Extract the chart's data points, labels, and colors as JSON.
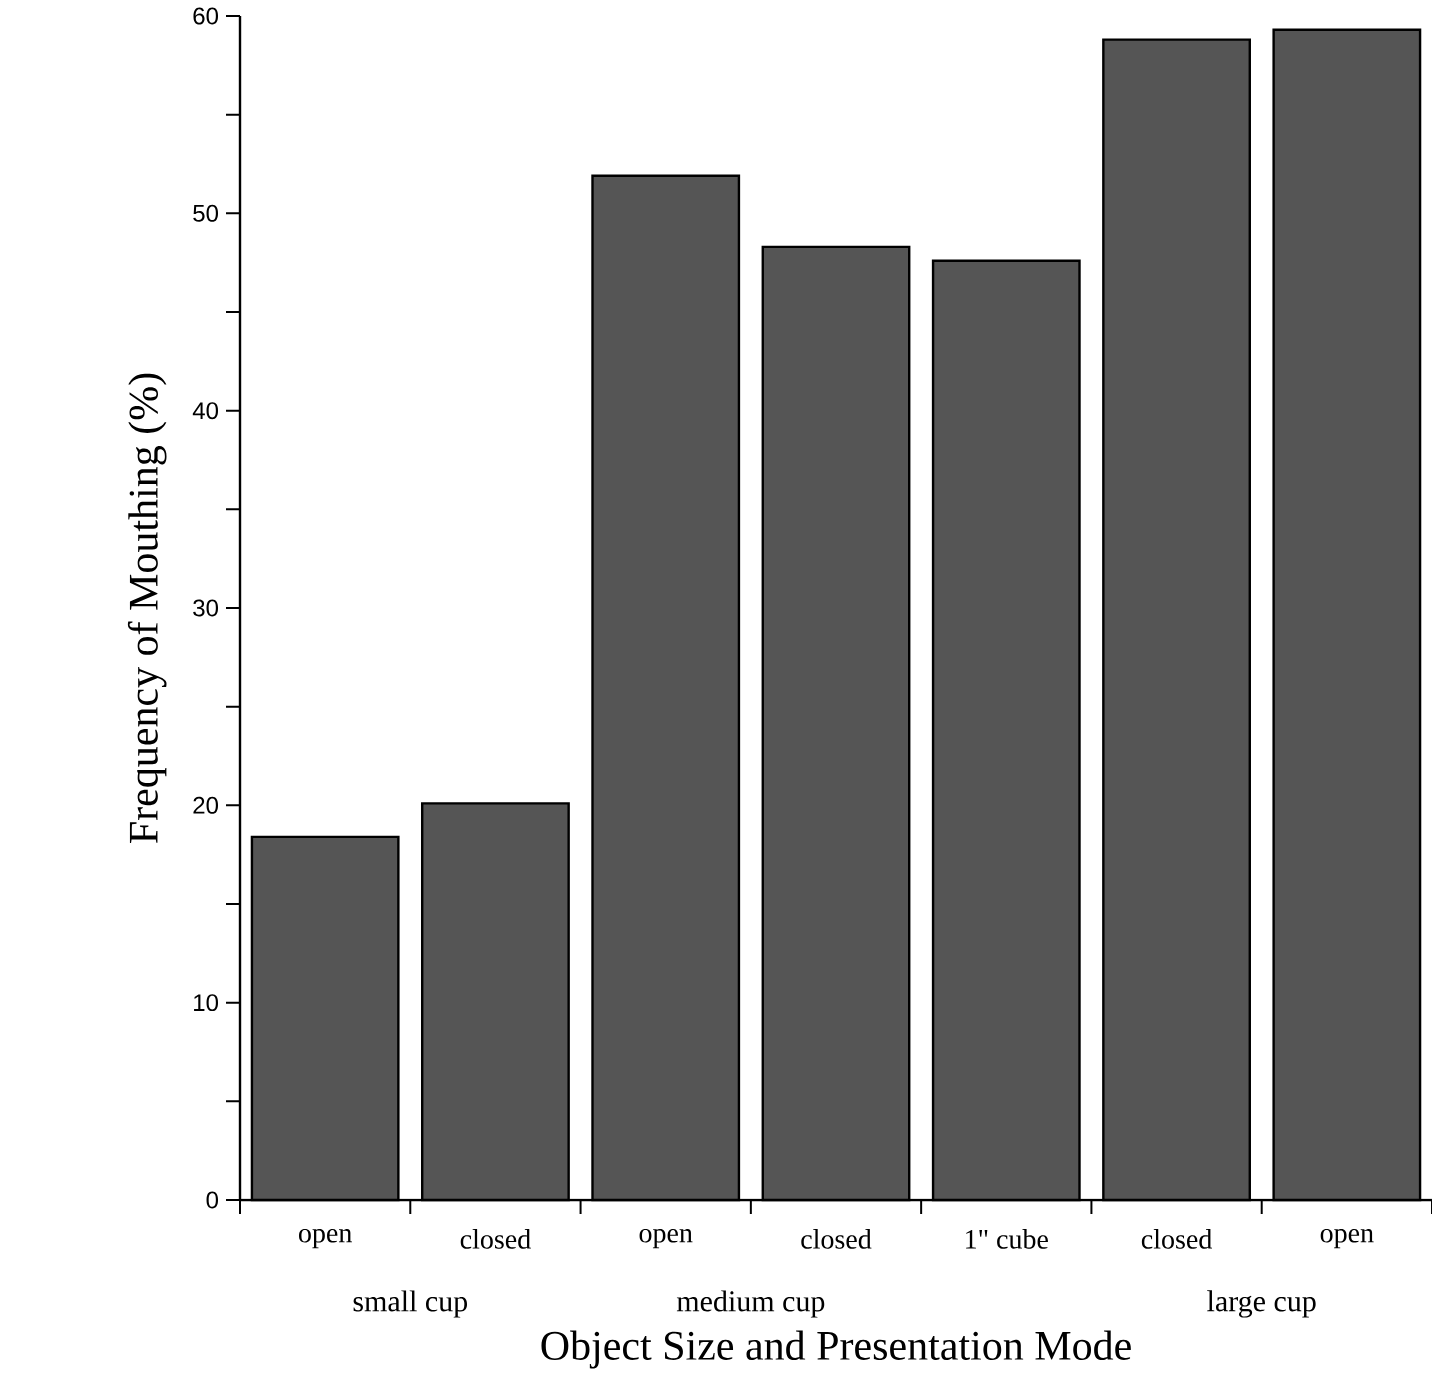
{
  "chart_data": {
    "type": "bar",
    "categories": [
      "open",
      "closed",
      "open",
      "closed",
      "1\" cube",
      "closed",
      "open"
    ],
    "values": [
      18.4,
      20.1,
      51.9,
      48.3,
      47.6,
      58.8,
      59.3
    ],
    "color": "#555555",
    "xlabel": "Object Size and Presentation Mode",
    "ylabel": "Frequency of Mouthing (%)",
    "ylim": [
      0,
      60
    ],
    "yticks": [
      0,
      {
        "value": 5,
        "label": null
      },
      10,
      {
        "value": 15,
        "label": null
      },
      20,
      {
        "value": 25,
        "label": null
      },
      30,
      {
        "value": 35,
        "label": null
      },
      40,
      {
        "value": 45,
        "label": null
      },
      50,
      {
        "value": 55,
        "label": null
      },
      60
    ],
    "annotations": [
      "small cup",
      "medium cup",
      "large cup"
    ]
  }
}
